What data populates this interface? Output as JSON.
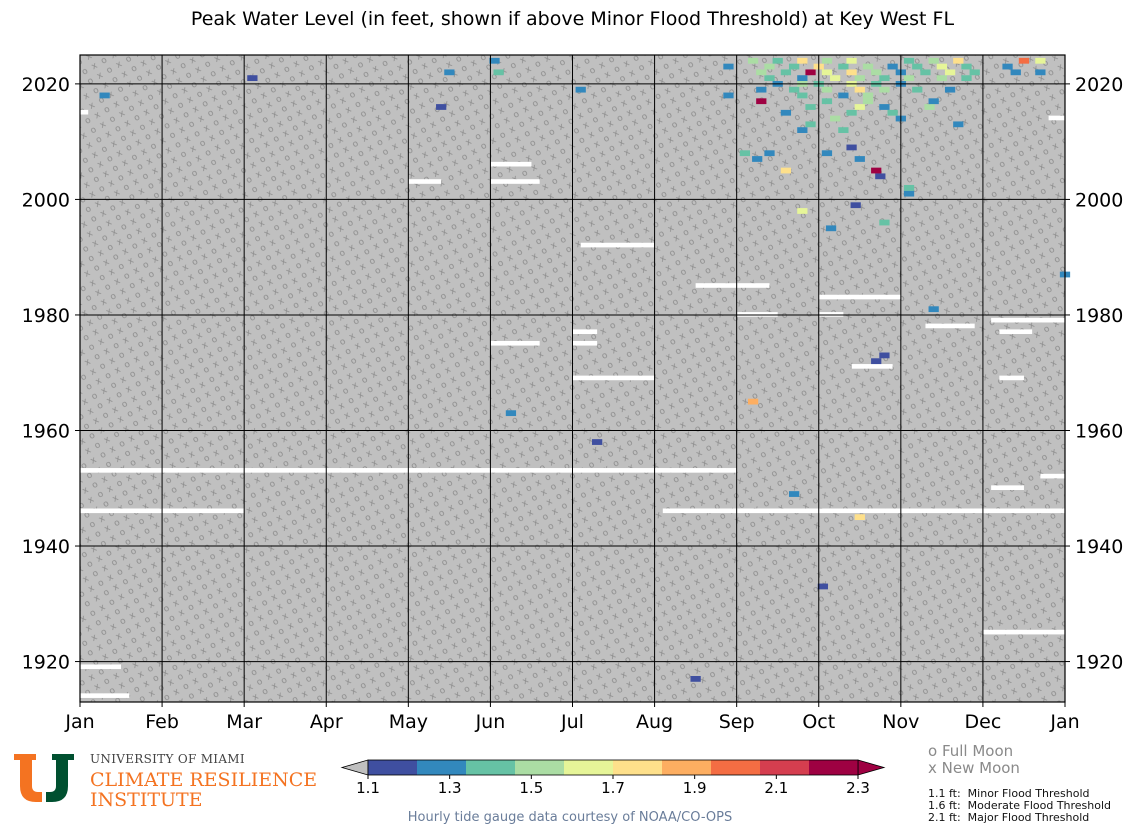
{
  "chart_data": {
    "type": "heatmap",
    "title": "Peak Water Level (in feet, shown if above Minor Flood Threshold) at Key West FL",
    "x_tick_labels": [
      "Jan",
      "Feb",
      "Mar",
      "Apr",
      "May",
      "Jun",
      "Jul",
      "Aug",
      "Sep",
      "Oct",
      "Nov",
      "Dec",
      "Jan"
    ],
    "y_tick_labels": [
      "1920",
      "1940",
      "1960",
      "1980",
      "2000",
      "2020"
    ],
    "y_ticks": [
      1920,
      1940,
      1960,
      1980,
      2000,
      2020
    ],
    "ylim": [
      1913,
      2025
    ],
    "x_unit": "month",
    "background_color": "#c0c0c0",
    "missing_data_color": "#ffffff",
    "colorbar": {
      "min": 1.1,
      "max": 2.3,
      "tick_labels": [
        "1.1",
        "1.3",
        "1.5",
        "1.7",
        "1.9",
        "2.1",
        "2.3"
      ],
      "ticks": [
        1.1,
        1.3,
        1.5,
        1.7,
        1.9,
        2.1,
        2.3
      ],
      "colors": [
        "#3f4fa0",
        "#3288bd",
        "#66c2a5",
        "#abdda4",
        "#e6f598",
        "#fee08b",
        "#fdae61",
        "#f46d43",
        "#d53e4f",
        "#9e0142"
      ],
      "under_color": "#c0c0c0"
    },
    "thresholds": [
      {
        "value": 1.1,
        "label": "1.1 ft:  Minor Flood Threshold"
      },
      {
        "value": 1.6,
        "label": "1.6 ft:  Moderate Flood Threshold"
      },
      {
        "value": 2.1,
        "label": "2.1 ft:  Major Flood Threshold"
      }
    ],
    "moon_legend": [
      {
        "symbol": "o",
        "label": "Full Moon"
      },
      {
        "symbol": "x",
        "label": "New Moon"
      }
    ],
    "missing_data_gaps": [
      {
        "year": 1914,
        "month_start": 1.0,
        "month_end": 1.6
      },
      {
        "year": 1919,
        "month_start": 1.0,
        "month_end": 1.5
      },
      {
        "year": 1925,
        "month_start": 12.0,
        "month_end": 13.0
      },
      {
        "year": 1946,
        "month_start": 1.0,
        "month_end": 3.0
      },
      {
        "year": 1946,
        "month_start": 8.1,
        "month_end": 13.0
      },
      {
        "year": 1950,
        "month_start": 12.1,
        "month_end": 12.5
      },
      {
        "year": 1952,
        "month_start": 12.7,
        "month_end": 13.0
      },
      {
        "year": 1953,
        "month_start": 1.0,
        "month_end": 9.0
      },
      {
        "year": 1969,
        "month_start": 7.0,
        "month_end": 8.0
      },
      {
        "year": 1969,
        "month_start": 12.2,
        "month_end": 12.5
      },
      {
        "year": 1971,
        "month_start": 10.4,
        "month_end": 10.9
      },
      {
        "year": 1975,
        "month_start": 6.0,
        "month_end": 6.6
      },
      {
        "year": 1975,
        "month_start": 7.0,
        "month_end": 7.3
      },
      {
        "year": 1977,
        "month_start": 7.0,
        "month_end": 7.3
      },
      {
        "year": 1977,
        "month_start": 12.2,
        "month_end": 12.6
      },
      {
        "year": 1978,
        "month_start": 11.3,
        "month_end": 11.9
      },
      {
        "year": 1979,
        "month_start": 12.1,
        "month_end": 13.0
      },
      {
        "year": 1980,
        "month_start": 10.0,
        "month_end": 10.3
      },
      {
        "year": 1980,
        "month_start": 9.0,
        "month_end": 9.5
      },
      {
        "year": 1983,
        "month_start": 10.0,
        "month_end": 11.0
      },
      {
        "year": 1985,
        "month_start": 8.5,
        "month_end": 9.4
      },
      {
        "year": 1992,
        "month_start": 7.1,
        "month_end": 8.0
      },
      {
        "year": 2003,
        "month_start": 5.0,
        "month_end": 5.4
      },
      {
        "year": 2003,
        "month_start": 6.0,
        "month_end": 6.6
      },
      {
        "year": 2006,
        "month_start": 6.0,
        "month_end": 6.5
      },
      {
        "year": 2014,
        "month_start": 12.8,
        "month_end": 13.0
      },
      {
        "year": 2015,
        "month_start": 1.0,
        "month_end": 1.1
      }
    ],
    "flood_events": [
      {
        "year": 1917,
        "month": 8.5,
        "value": 1.15
      },
      {
        "year": 1933,
        "month": 10.05,
        "value": 1.2
      },
      {
        "year": 1945,
        "month": 10.5,
        "value": 1.75
      },
      {
        "year": 1949,
        "month": 9.7,
        "value": 1.3
      },
      {
        "year": 1958,
        "month": 7.3,
        "value": 1.2
      },
      {
        "year": 1963,
        "month": 6.25,
        "value": 1.25
      },
      {
        "year": 1965,
        "month": 9.2,
        "value": 1.85
      },
      {
        "year": 1972,
        "month": 10.7,
        "value": 1.2
      },
      {
        "year": 1973,
        "month": 10.8,
        "value": 1.15
      },
      {
        "year": 1981,
        "month": 11.4,
        "value": 1.25
      },
      {
        "year": 1987,
        "month": 13.0,
        "value": 1.3
      },
      {
        "year": 1995,
        "month": 10.15,
        "value": 1.25
      },
      {
        "year": 1996,
        "month": 10.8,
        "value": 1.4
      },
      {
        "year": 1998,
        "month": 9.8,
        "value": 1.65
      },
      {
        "year": 1999,
        "month": 10.45,
        "value": 1.2
      },
      {
        "year": 2001,
        "month": 11.1,
        "value": 1.25
      },
      {
        "year": 2002,
        "month": 11.1,
        "value": 1.4
      },
      {
        "year": 2004,
        "month": 10.75,
        "value": 1.2
      },
      {
        "year": 2005,
        "month": 9.6,
        "value": 1.75
      },
      {
        "year": 2005,
        "month": 10.7,
        "value": 2.2
      },
      {
        "year": 2007,
        "month": 9.25,
        "value": 1.3
      },
      {
        "year": 2007,
        "month": 10.5,
        "value": 1.3
      },
      {
        "year": 2008,
        "month": 9.1,
        "value": 1.35
      },
      {
        "year": 2008,
        "month": 9.4,
        "value": 1.3
      },
      {
        "year": 2008,
        "month": 10.1,
        "value": 1.25
      },
      {
        "year": 2009,
        "month": 10.4,
        "value": 1.2
      },
      {
        "year": 2012,
        "month": 9.8,
        "value": 1.3
      },
      {
        "year": 2012,
        "month": 10.3,
        "value": 1.45
      },
      {
        "year": 2013,
        "month": 9.9,
        "value": 1.4
      },
      {
        "year": 2013,
        "month": 11.7,
        "value": 1.25
      },
      {
        "year": 2014,
        "month": 10.2,
        "value": 1.5
      },
      {
        "year": 2014,
        "month": 11.0,
        "value": 1.3
      },
      {
        "year": 2015,
        "month": 9.6,
        "value": 1.3
      },
      {
        "year": 2015,
        "month": 10.4,
        "value": 1.45
      },
      {
        "year": 2015,
        "month": 10.9,
        "value": 1.35
      },
      {
        "year": 2016,
        "month": 5.4,
        "value": 1.2
      },
      {
        "year": 2016,
        "month": 9.9,
        "value": 1.45
      },
      {
        "year": 2016,
        "month": 10.5,
        "value": 1.6
      },
      {
        "year": 2016,
        "month": 10.8,
        "value": 1.3
      },
      {
        "year": 2016,
        "month": 11.35,
        "value": 1.5
      },
      {
        "year": 2017,
        "month": 9.3,
        "value": 2.25
      },
      {
        "year": 2017,
        "month": 10.1,
        "value": 1.45
      },
      {
        "year": 2017,
        "month": 10.6,
        "value": 1.55
      },
      {
        "year": 2017,
        "month": 11.4,
        "value": 1.3
      },
      {
        "year": 2018,
        "month": 1.3,
        "value": 1.25
      },
      {
        "year": 2018,
        "month": 8.9,
        "value": 1.25
      },
      {
        "year": 2018,
        "month": 9.8,
        "value": 1.4
      },
      {
        "year": 2018,
        "month": 10.3,
        "value": 1.3
      },
      {
        "year": 2018,
        "month": 10.6,
        "value": 1.5
      },
      {
        "year": 2019,
        "month": 7.1,
        "value": 1.25
      },
      {
        "year": 2019,
        "month": 9.3,
        "value": 1.3
      },
      {
        "year": 2019,
        "month": 9.7,
        "value": 1.45
      },
      {
        "year": 2019,
        "month": 10.1,
        "value": 1.55
      },
      {
        "year": 2019,
        "month": 10.5,
        "value": 1.7
      },
      {
        "year": 2019,
        "month": 10.8,
        "value": 1.5
      },
      {
        "year": 2019,
        "month": 11.2,
        "value": 1.4
      },
      {
        "year": 2019,
        "month": 11.6,
        "value": 1.3
      },
      {
        "year": 2020,
        "month": 9.5,
        "value": 1.3
      },
      {
        "year": 2020,
        "month": 9.8,
        "value": 1.5
      },
      {
        "year": 2020,
        "month": 10.0,
        "value": 1.35
      },
      {
        "year": 2020,
        "month": 10.4,
        "value": 1.6
      },
      {
        "year": 2020,
        "month": 10.7,
        "value": 1.45
      },
      {
        "year": 2020,
        "month": 11.0,
        "value": 1.3
      },
      {
        "year": 2021,
        "month": 3.1,
        "value": 1.2
      },
      {
        "year": 2021,
        "month": 9.4,
        "value": 1.4
      },
      {
        "year": 2021,
        "month": 9.8,
        "value": 1.3
      },
      {
        "year": 2021,
        "month": 10.2,
        "value": 1.65
      },
      {
        "year": 2021,
        "month": 10.5,
        "value": 1.5
      },
      {
        "year": 2021,
        "month": 10.8,
        "value": 1.35
      },
      {
        "year": 2021,
        "month": 11.1,
        "value": 1.5
      },
      {
        "year": 2021,
        "month": 11.5,
        "value": 1.55
      },
      {
        "year": 2021,
        "month": 11.8,
        "value": 1.35
      },
      {
        "year": 2022,
        "month": 5.5,
        "value": 1.3
      },
      {
        "year": 2022,
        "month": 6.1,
        "value": 1.45
      },
      {
        "year": 2022,
        "month": 9.3,
        "value": 1.5
      },
      {
        "year": 2022,
        "month": 9.6,
        "value": 1.35
      },
      {
        "year": 2022,
        "month": 9.9,
        "value": 2.2
      },
      {
        "year": 2022,
        "month": 10.1,
        "value": 1.6
      },
      {
        "year": 2022,
        "month": 10.4,
        "value": 1.75
      },
      {
        "year": 2022,
        "month": 10.7,
        "value": 1.55
      },
      {
        "year": 2022,
        "month": 11.0,
        "value": 1.3
      },
      {
        "year": 2022,
        "month": 11.3,
        "value": 1.45
      },
      {
        "year": 2022,
        "month": 11.6,
        "value": 1.6
      },
      {
        "year": 2022,
        "month": 11.9,
        "value": 1.35
      },
      {
        "year": 2022,
        "month": 12.4,
        "value": 1.3
      },
      {
        "year": 2022,
        "month": 12.7,
        "value": 1.3
      },
      {
        "year": 2023,
        "month": 8.9,
        "value": 1.3
      },
      {
        "year": 2023,
        "month": 9.4,
        "value": 1.5
      },
      {
        "year": 2023,
        "month": 9.7,
        "value": 1.35
      },
      {
        "year": 2023,
        "month": 10.0,
        "value": 1.7
      },
      {
        "year": 2023,
        "month": 10.3,
        "value": 1.45
      },
      {
        "year": 2023,
        "month": 10.6,
        "value": 1.55
      },
      {
        "year": 2023,
        "month": 10.9,
        "value": 1.3
      },
      {
        "year": 2023,
        "month": 11.2,
        "value": 1.45
      },
      {
        "year": 2023,
        "month": 11.5,
        "value": 1.6
      },
      {
        "year": 2023,
        "month": 11.8,
        "value": 1.35
      },
      {
        "year": 2023,
        "month": 12.3,
        "value": 1.3
      },
      {
        "year": 2024,
        "month": 6.05,
        "value": 1.3
      },
      {
        "year": 2024,
        "month": 9.2,
        "value": 1.55
      },
      {
        "year": 2024,
        "month": 9.5,
        "value": 1.4
      },
      {
        "year": 2024,
        "month": 9.8,
        "value": 1.8
      },
      {
        "year": 2024,
        "month": 10.1,
        "value": 1.5
      },
      {
        "year": 2024,
        "month": 10.4,
        "value": 1.65
      },
      {
        "year": 2024,
        "month": 11.1,
        "value": 1.4
      },
      {
        "year": 2024,
        "month": 11.4,
        "value": 1.55
      },
      {
        "year": 2024,
        "month": 11.7,
        "value": 1.75
      },
      {
        "year": 2024,
        "month": 12.5,
        "value": 1.95
      },
      {
        "year": 2024,
        "month": 12.7,
        "value": 1.6
      }
    ]
  },
  "logo": {
    "line1": "UNIVERSITY OF MIAMI",
    "line2": "CLIMATE RESILIENCE",
    "line3": "INSTITUTE"
  },
  "credit": "Hourly tide gauge data courtesy of NOAA/CO-OPS"
}
